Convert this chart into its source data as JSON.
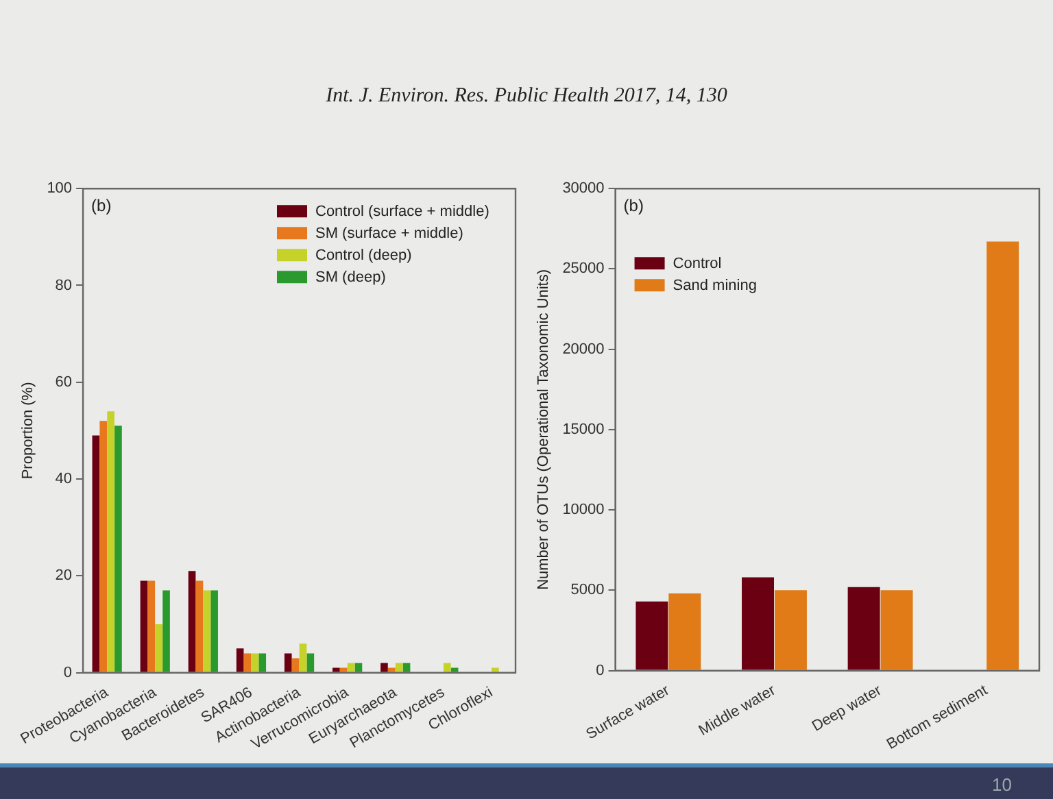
{
  "chart_data": [
    {
      "type": "bar",
      "title": "Int. J. Environ. Res. Public Health 2017, 14, 130",
      "ylabel": "Proportion (%)",
      "categories": [
        "Proteobacteria",
        "Cyanobacteria",
        "Bacteroidetes",
        "SAR406",
        "Actinobacteria",
        "Verrucomicrobia",
        "Euryarchaeota",
        "Planctomycetes",
        "Chloroflexi"
      ],
      "series": [
        {
          "name": "Control (surface + middle)",
          "color": "#6b0012",
          "values": [
            49,
            19,
            21,
            5,
            4,
            1,
            2,
            0,
            0
          ]
        },
        {
          "name": "SM (surface + middle)",
          "color": "#e8781e",
          "values": [
            52,
            19,
            19,
            4,
            3,
            1,
            1,
            0,
            0
          ]
        },
        {
          "name": "Control (deep)",
          "color": "#c5d22a",
          "values": [
            54,
            10,
            17,
            4,
            6,
            2,
            2,
            2,
            1
          ]
        },
        {
          "name": "SM (deep)",
          "color": "#2a9a2e",
          "values": [
            51,
            17,
            17,
            4,
            4,
            2,
            2,
            1,
            0
          ]
        }
      ],
      "ylim": [
        0,
        100
      ],
      "yticks": [
        0,
        20,
        40,
        60,
        80,
        100
      ],
      "grid": false,
      "legend": "top right",
      "annotations": [
        "(b)"
      ]
    },
    {
      "type": "bar",
      "ylabel": "Number of OTUs (Operational Taxonomic Units)",
      "categories": [
        "Surface water",
        "Middle water",
        "Deep water",
        "Bottom sediment"
      ],
      "series": [
        {
          "name": "Control",
          "color": "#6b0012",
          "values": [
            4300,
            5800,
            5200,
            null
          ]
        },
        {
          "name": "Sand mining",
          "color": "#e07b18",
          "values": [
            4800,
            5000,
            5000,
            26700
          ]
        }
      ],
      "ylim": [
        0,
        30000
      ],
      "yticks": [
        0,
        5000,
        10000,
        15000,
        20000,
        25000,
        30000
      ],
      "grid": false,
      "legend": "top left",
      "annotations": [
        "(b)",
        "10"
      ]
    }
  ]
}
